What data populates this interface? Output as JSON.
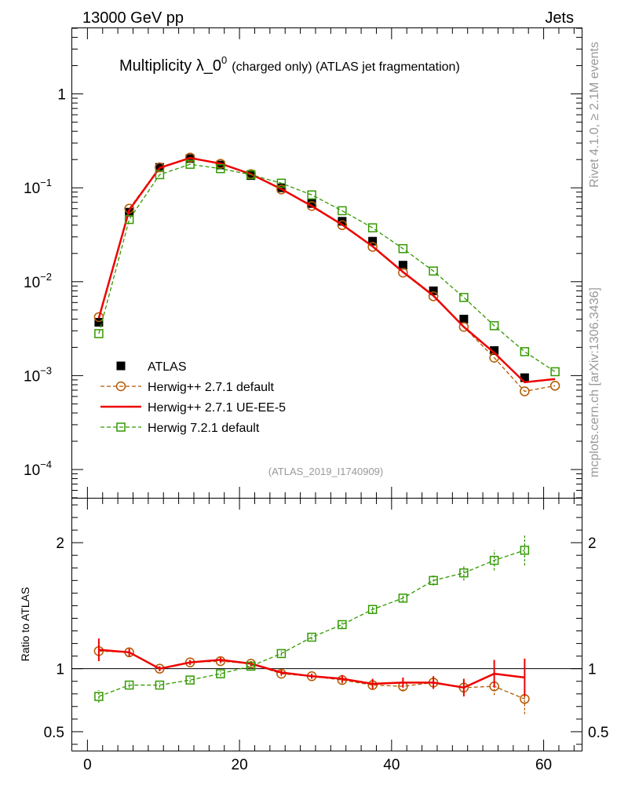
{
  "header": {
    "energy_label": "13000 GeV pp",
    "category_label": "Jets"
  },
  "side_labels": {
    "rivet": "Rivet 4.1.0, ≥ 2.1M events",
    "mcplots": "mcplots.cern.ch [arXiv:1306.3436]"
  },
  "chart_data": [
    {
      "type": "scatter",
      "title_main": "Multiplicity λ_0",
      "title_sup": "0",
      "title_rest": "(charged only) (ATLAS jet fragmentation)",
      "analysis_label": "(ATLAS_2019_I1740909)",
      "xlabel": "",
      "ylabel": "",
      "yscale": "log",
      "xlim": [
        -2,
        65
      ],
      "ylim": [
        5e-05,
        5
      ],
      "y_ticks": [
        {
          "v": 0.0001,
          "mant": "10",
          "exp": "−4"
        },
        {
          "v": 0.001,
          "mant": "10",
          "exp": "−3"
        },
        {
          "v": 0.01,
          "mant": "10",
          "exp": "−2"
        },
        {
          "v": 0.1,
          "mant": "10",
          "exp": "−1"
        },
        {
          "v": 1,
          "mant": "1",
          "exp": ""
        }
      ],
      "x": [
        1.5,
        5.5,
        9.5,
        13.5,
        17.5,
        21.5,
        25.5,
        29.5,
        33.5,
        37.5,
        41.5,
        45.5,
        49.5,
        53.5,
        57.5,
        61.5
      ],
      "series": [
        {
          "name": "ATLAS",
          "style": "data",
          "color": "#000000",
          "values": [
            0.0037,
            0.055,
            0.165,
            0.205,
            0.175,
            0.135,
            0.1,
            0.068,
            0.044,
            0.027,
            0.015,
            0.008,
            0.004,
            0.00185,
            0.00095,
            null
          ]
        },
        {
          "name": "Herwig++ 2.7.1 default",
          "style": "circle-dashed",
          "color": "#b35900",
          "values": [
            0.0042,
            0.06,
            0.165,
            0.21,
            0.18,
            0.14,
            0.096,
            0.064,
            0.04,
            0.0235,
            0.0125,
            0.007,
            0.0033,
            0.00155,
            0.00068,
            0.00078
          ]
        },
        {
          "name": "Herwig++ 2.7.1 UE-EE-5",
          "style": "line",
          "color": "#ee0000",
          "values": [
            0.0041,
            0.058,
            0.163,
            0.208,
            0.181,
            0.14,
            0.097,
            0.064,
            0.0405,
            0.0238,
            0.0127,
            0.0071,
            0.0033,
            0.00175,
            0.00085,
            0.00092
          ]
        },
        {
          "name": "Herwig 7.2.1 default",
          "style": "square-dashed",
          "color": "#339900",
          "values": [
            0.0028,
            0.046,
            0.138,
            0.178,
            0.16,
            0.138,
            0.112,
            0.084,
            0.057,
            0.0375,
            0.0225,
            0.013,
            0.0068,
            0.0034,
            0.0018,
            0.0011
          ]
        }
      ]
    },
    {
      "type": "scatter",
      "title": "",
      "xlabel": "",
      "ylabel": "Ratio to ATLAS",
      "xlim": [
        -2,
        65
      ],
      "ylim": [
        0.35,
        2.35
      ],
      "x_ticks": [
        0,
        20,
        40,
        60
      ],
      "y_ticks": [
        0.5,
        1,
        2
      ],
      "reference_line": 1,
      "x": [
        1.5,
        5.5,
        9.5,
        13.5,
        17.5,
        21.5,
        25.5,
        29.5,
        33.5,
        37.5,
        41.5,
        45.5,
        49.5,
        53.5,
        57.5
      ],
      "series": [
        {
          "name": "Herwig++ 2.7.1 default",
          "style": "circle-dashed",
          "color": "#b35900",
          "values": [
            1.14,
            1.13,
            1.0,
            1.05,
            1.06,
            1.04,
            0.96,
            0.94,
            0.91,
            0.87,
            0.86,
            0.89,
            0.85,
            0.86,
            0.76
          ],
          "errors": [
            0.08,
            0.03,
            0.02,
            0.02,
            0.02,
            0.02,
            0.02,
            0.02,
            0.03,
            0.03,
            0.04,
            0.05,
            0.06,
            0.07,
            0.12
          ]
        },
        {
          "name": "Herwig++ 2.7.1 UE-EE-5",
          "style": "line",
          "color": "#ee0000",
          "values": [
            1.15,
            1.13,
            1.0,
            1.05,
            1.07,
            1.04,
            0.97,
            0.94,
            0.92,
            0.88,
            0.89,
            0.89,
            0.85,
            0.96,
            0.93
          ],
          "errors": [
            0.09,
            0.03,
            0.02,
            0.02,
            0.02,
            0.02,
            0.02,
            0.02,
            0.03,
            0.04,
            0.04,
            0.05,
            0.07,
            0.11,
            0.15
          ]
        },
        {
          "name": "Herwig 7.2.1 default",
          "style": "square-dashed",
          "color": "#339900",
          "values": [
            0.78,
            0.87,
            0.87,
            0.91,
            0.96,
            1.02,
            1.12,
            1.25,
            1.35,
            1.47,
            1.56,
            1.7,
            1.76,
            1.86,
            1.94
          ],
          "errors": [
            0.05,
            0.02,
            0.02,
            0.02,
            0.02,
            0.02,
            0.02,
            0.02,
            0.03,
            0.03,
            0.03,
            0.04,
            0.06,
            0.08,
            0.12
          ]
        }
      ]
    }
  ]
}
